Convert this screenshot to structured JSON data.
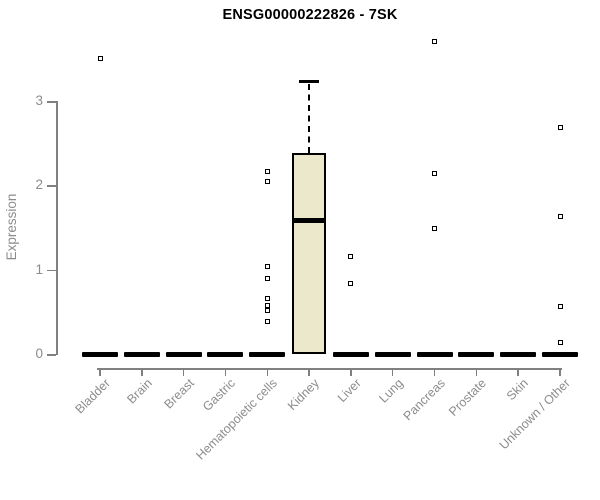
{
  "window": {
    "title": "ENSG00000222826 - 7SK"
  },
  "colors": {
    "background": "#ffffff",
    "title_text": "#000000",
    "axis_line": "#808080",
    "axis_label_text": "#8c8c8c",
    "box_fill": "#ece8cc",
    "box_border": "#000000",
    "median": "#000000",
    "outlier": "#000000"
  },
  "chart_data": {
    "type": "boxplot",
    "title": "ENSG00000222826 - 7SK",
    "xlabel": "",
    "ylabel": "Expression",
    "ylim": [
      -0.07,
      3.8
    ],
    "yticks": [
      0,
      1,
      2,
      3
    ],
    "grid": false,
    "legend": "none",
    "categories": [
      "Bladder",
      "Brain",
      "Breast",
      "Gastric",
      "Hematopoietic cells",
      "Kidney",
      "Liver",
      "Lung",
      "Pancreas",
      "Prostate",
      "Skin",
      "Unknown / Other"
    ],
    "boxes": [
      {
        "category": "Bladder",
        "whisker_low": 0,
        "q1": 0,
        "median": 0,
        "q3": 0,
        "whisker_high": 0,
        "outliers": [
          3.5
        ]
      },
      {
        "category": "Brain",
        "whisker_low": 0,
        "q1": 0,
        "median": 0,
        "q3": 0,
        "whisker_high": 0,
        "outliers": []
      },
      {
        "category": "Breast",
        "whisker_low": 0,
        "q1": 0,
        "median": 0,
        "q3": 0,
        "whisker_high": 0,
        "outliers": []
      },
      {
        "category": "Gastric",
        "whisker_low": 0,
        "q1": 0,
        "median": 0,
        "q3": 0,
        "whisker_high": 0,
        "outliers": []
      },
      {
        "category": "Hematopoietic cells",
        "whisker_low": 0,
        "q1": 0,
        "median": 0,
        "q3": 0,
        "whisker_high": 0,
        "outliers": [
          2.16,
          2.04,
          1.04,
          0.89,
          0.66,
          0.58,
          0.52,
          0.39
        ]
      },
      {
        "category": "Kidney",
        "whisker_low": 0,
        "q1": 0,
        "median": 1.58,
        "q3": 2.38,
        "whisker_high": 3.24,
        "outliers": []
      },
      {
        "category": "Liver",
        "whisker_low": 0,
        "q1": 0,
        "median": 0,
        "q3": 0,
        "whisker_high": 0,
        "outliers": [
          1.16,
          0.84
        ]
      },
      {
        "category": "Lung",
        "whisker_low": 0,
        "q1": 0,
        "median": 0,
        "q3": 0,
        "whisker_high": 0,
        "outliers": []
      },
      {
        "category": "Pancreas",
        "whisker_low": 0,
        "q1": 0,
        "median": 0,
        "q3": 0,
        "whisker_high": 0,
        "outliers": [
          3.7,
          2.14,
          1.49
        ]
      },
      {
        "category": "Prostate",
        "whisker_low": 0,
        "q1": 0,
        "median": 0,
        "q3": 0,
        "whisker_high": 0,
        "outliers": []
      },
      {
        "category": "Skin",
        "whisker_low": 0,
        "q1": 0,
        "median": 0,
        "q3": 0,
        "whisker_high": 0,
        "outliers": []
      },
      {
        "category": "Unknown / Other",
        "whisker_low": 0,
        "q1": 0,
        "median": 0,
        "q3": 0,
        "whisker_high": 0,
        "outliers": [
          2.68,
          1.63,
          0.56,
          0.14
        ]
      }
    ]
  }
}
